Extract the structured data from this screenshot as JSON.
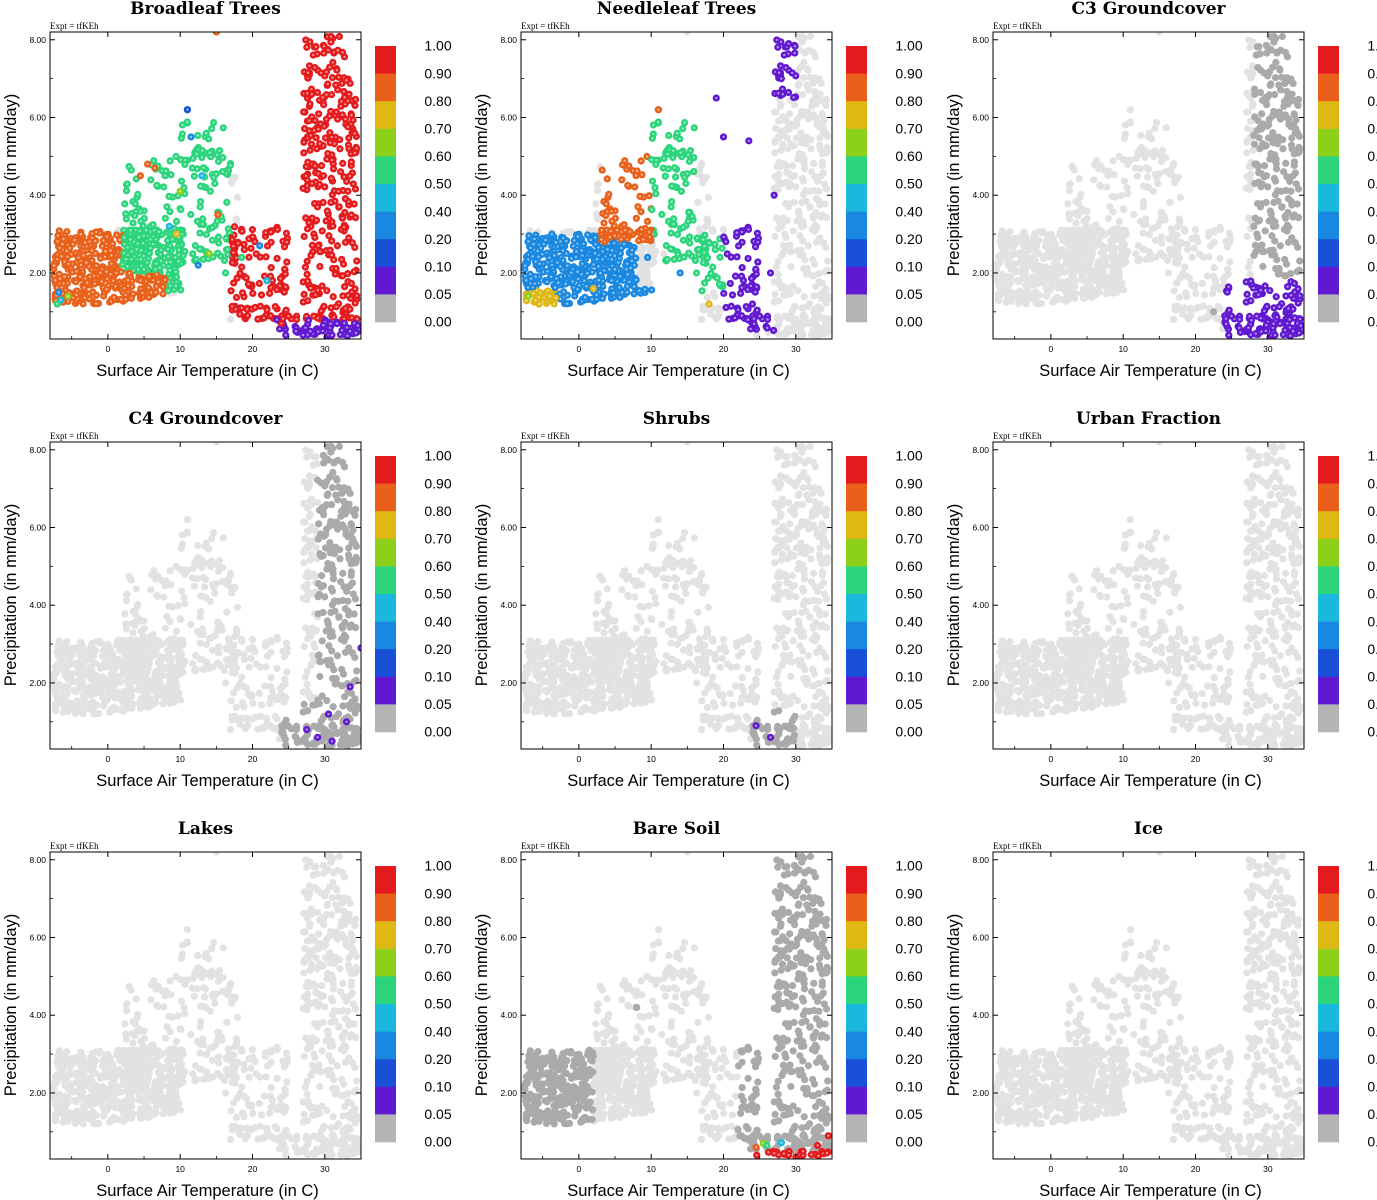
{
  "figure": {
    "experiment": "Expt = tfKEh",
    "xlabel": "Surface Air Temperature (in C)",
    "ylabel": "Precipitation (in mm/day)",
    "x_ticks": [
      0,
      10,
      20,
      30
    ],
    "y_ticks": [
      "2.00",
      "4.00",
      "6.00",
      "8.00"
    ],
    "colorbar_labels": [
      "1.00",
      "0.90",
      "0.80",
      "0.70",
      "0.60",
      "0.50",
      "0.40",
      "0.20",
      "0.10",
      "0.05",
      "0.00"
    ],
    "colorbar_colors": [
      "#e41a1c",
      "#e8601a",
      "#e0b814",
      "#8cd01c",
      "#2cd47c",
      "#1ab8dc",
      "#1a88e0",
      "#1a50d8",
      "#6018d0",
      "#b4b4b4"
    ],
    "colors": {
      "background_point": "#e2e2e2",
      "zero_point": "#aaaaaa"
    }
  },
  "chart_data": [
    {
      "type": "scatter",
      "title": "Broadleaf Trees",
      "xlabel": "Surface Air Temperature (in C)",
      "ylabel": "Precipitation (in mm/day)",
      "xlim": [
        -8,
        35
      ],
      "ylim": [
        0.3,
        8.2
      ],
      "grid": false,
      "legend": "colorbar-right",
      "color_rules": [
        {
          "x": [
            -8,
            0
          ],
          "y": [
            0,
            3.2
          ],
          "cls": 8
        },
        {
          "x": [
            0,
            8
          ],
          "y": [
            0,
            3.0
          ],
          "cls": 8
        },
        {
          "x": [
            2,
            17
          ],
          "y": [
            2.0,
            6.3
          ],
          "cls": 5
        },
        {
          "x": [
            8,
            18
          ],
          "y": [
            1.5,
            3.2
          ],
          "cls": 5
        },
        {
          "x": [
            17,
            26
          ],
          "y": [
            0.5,
            3.2
          ],
          "cls": 9
        },
        {
          "x": [
            26,
            35
          ],
          "y": [
            0.8,
            8.2
          ],
          "cls": 10
        },
        {
          "x": [
            22,
            35
          ],
          "y": [
            0,
            0.8
          ],
          "cls": 1
        }
      ],
      "highlights": [
        {
          "x": -6.5,
          "y": 1.3,
          "cls": 4
        },
        {
          "x": -6.8,
          "y": 1.5,
          "cls": 3
        },
        {
          "x": -7.0,
          "y": 1.2,
          "cls": 5
        },
        {
          "x": -5.5,
          "y": 1.4,
          "cls": 6
        },
        {
          "x": 10.0,
          "y": 4.1,
          "cls": 6
        },
        {
          "x": 11.0,
          "y": 6.2,
          "cls": 2
        },
        {
          "x": 11.5,
          "y": 5.5,
          "cls": 3
        },
        {
          "x": 9.5,
          "y": 3.0,
          "cls": 7
        },
        {
          "x": 13.0,
          "y": 4.5,
          "cls": 4
        },
        {
          "x": 5.5,
          "y": 4.8,
          "cls": 8
        },
        {
          "x": 6.5,
          "y": 4.7,
          "cls": 8
        },
        {
          "x": 4.5,
          "y": 4.5,
          "cls": 8
        },
        {
          "x": 15.0,
          "y": 8.2,
          "cls": 8
        },
        {
          "x": 15.2,
          "y": 3.5,
          "cls": 8
        },
        {
          "x": 14.0,
          "y": 2.5,
          "cls": 6
        },
        {
          "x": 12.5,
          "y": 2.2,
          "cls": 3
        },
        {
          "x": 18.5,
          "y": 2.4,
          "cls": 5
        },
        {
          "x": 21.0,
          "y": 2.7,
          "cls": 3
        },
        {
          "x": 24.0,
          "y": 0.7,
          "cls": 9
        },
        {
          "x": 26.0,
          "y": 0.5,
          "cls": 1
        },
        {
          "x": 28.0,
          "y": 0.5,
          "cls": 1
        },
        {
          "x": 27.0,
          "y": 0.4,
          "cls": 1
        },
        {
          "x": 22.0,
          "y": 1.8,
          "cls": 4
        },
        {
          "x": 8.5,
          "y": 3.2,
          "cls": 4
        }
      ]
    },
    {
      "type": "scatter",
      "title": "Needleleaf Trees",
      "xlabel": "Surface Air Temperature (in C)",
      "ylabel": "Precipitation (in mm/day)",
      "xlim": [
        -8,
        35
      ],
      "ylim": [
        0.3,
        8.2
      ],
      "grid": false,
      "legend": "colorbar-right",
      "color_rules": [
        {
          "x": [
            -8,
            -3
          ],
          "y": [
            0,
            1.8
          ],
          "cls": 7
        },
        {
          "x": [
            -8,
            8
          ],
          "y": [
            1.6,
            3.0
          ],
          "cls": 3
        },
        {
          "x": [
            3,
            10
          ],
          "y": [
            2.8,
            5.0
          ],
          "cls": 8
        },
        {
          "x": [
            10,
            16
          ],
          "y": [
            2.8,
            6.5
          ],
          "cls": 5
        },
        {
          "x": [
            -3,
            12
          ],
          "y": [
            0,
            1.6
          ],
          "cls": 3
        },
        {
          "x": [
            12,
            20
          ],
          "y": [
            1.5,
            3.0
          ],
          "cls": 5
        },
        {
          "x": [
            20,
            27
          ],
          "y": [
            0.5,
            8.2
          ],
          "cls": 1
        },
        {
          "x": [
            27,
            30
          ],
          "y": [
            6.5,
            8.2
          ],
          "cls": 1
        },
        {
          "x": [
            27,
            35
          ],
          "y": [
            0,
            6.5
          ],
          "cls": -1
        }
      ],
      "highlights": [
        {
          "x": -6.0,
          "y": 1.3,
          "cls": 7
        },
        {
          "x": -5.5,
          "y": 1.2,
          "cls": 7
        },
        {
          "x": -4.0,
          "y": 1.4,
          "cls": 7
        },
        {
          "x": -7.0,
          "y": 1.4,
          "cls": 6
        },
        {
          "x": 2.0,
          "y": 1.6,
          "cls": 7
        },
        {
          "x": 18.0,
          "y": 1.2,
          "cls": 7
        },
        {
          "x": 15.0,
          "y": 8.3,
          "cls": 2
        },
        {
          "x": 11.0,
          "y": 6.2,
          "cls": 8
        },
        {
          "x": 19.0,
          "y": 6.5,
          "cls": 1
        },
        {
          "x": 20.0,
          "y": 5.5,
          "cls": 1
        },
        {
          "x": 23.5,
          "y": 5.4,
          "cls": 1
        },
        {
          "x": 28.0,
          "y": 7.0,
          "cls": 1
        },
        {
          "x": 29.0,
          "y": 7.9,
          "cls": 1
        },
        {
          "x": 27.0,
          "y": 4.0,
          "cls": 1
        },
        {
          "x": 26.5,
          "y": 2.0,
          "cls": 1
        },
        {
          "x": 24.0,
          "y": 1.2,
          "cls": 1
        },
        {
          "x": 9.5,
          "y": 2.4,
          "cls": 3
        },
        {
          "x": 14.0,
          "y": 2.0,
          "cls": 3
        }
      ]
    },
    {
      "type": "scatter",
      "title": "C3 Groundcover",
      "xlabel": "Surface Air Temperature (in C)",
      "ylabel": "Precipitation (in mm/day)",
      "xlim": [
        -8,
        35
      ],
      "ylim": [
        0.3,
        8.2
      ],
      "grid": false,
      "legend": "colorbar-right",
      "color_rules": [
        {
          "x": [
            24,
            35
          ],
          "y": [
            0,
            1.8
          ],
          "cls": 1
        },
        {
          "x": [
            28,
            35
          ],
          "y": [
            1.8,
            8.2
          ],
          "cls": 0
        }
      ],
      "highlights": [
        {
          "x": 22.5,
          "y": 1.0,
          "cls": 0
        },
        {
          "x": 33.0,
          "y": 0.8,
          "cls": 1
        }
      ]
    },
    {
      "type": "scatter",
      "title": "C4 Groundcover",
      "xlabel": "Surface Air Temperature (in C)",
      "ylabel": "Precipitation (in mm/day)",
      "xlim": [
        -8,
        35
      ],
      "ylim": [
        0.3,
        8.2
      ],
      "grid": false,
      "legend": "colorbar-right",
      "color_rules": [
        {
          "x": [
            24,
            35
          ],
          "y": [
            0,
            1.5
          ],
          "cls": 0
        },
        {
          "x": [
            29,
            35
          ],
          "y": [
            1.5,
            8.2
          ],
          "cls": 0
        }
      ],
      "highlights": [
        {
          "x": 27.5,
          "y": 0.8,
          "cls": 1
        },
        {
          "x": 29.0,
          "y": 0.6,
          "cls": 1
        },
        {
          "x": 31.0,
          "y": 0.5,
          "cls": 1
        },
        {
          "x": 33.0,
          "y": 1.0,
          "cls": 1
        },
        {
          "x": 33.5,
          "y": 1.9,
          "cls": 1
        },
        {
          "x": 35.0,
          "y": 2.9,
          "cls": 1
        },
        {
          "x": 30.5,
          "y": 1.2,
          "cls": 1
        }
      ]
    },
    {
      "type": "scatter",
      "title": "Shrubs",
      "xlabel": "Surface Air Temperature (in C)",
      "ylabel": "Precipitation (in mm/day)",
      "xlim": [
        -8,
        35
      ],
      "ylim": [
        0.3,
        8.2
      ],
      "grid": false,
      "legend": "colorbar-right",
      "color_rules": [
        {
          "x": [
            24,
            30
          ],
          "y": [
            0.3,
            1.4
          ],
          "cls": 0
        }
      ],
      "highlights": [
        {
          "x": 24.5,
          "y": 0.9,
          "cls": 1
        },
        {
          "x": 26.5,
          "y": 0.6,
          "cls": 1
        }
      ]
    },
    {
      "type": "scatter",
      "title": "Urban Fraction",
      "xlabel": "Surface Air Temperature (in C)",
      "ylabel": "Precipitation (in mm/day)",
      "xlim": [
        -8,
        35
      ],
      "ylim": [
        0.3,
        8.2
      ],
      "grid": false,
      "legend": "colorbar-right",
      "color_rules": [],
      "highlights": []
    },
    {
      "type": "scatter",
      "title": "Lakes",
      "xlabel": "Surface Air Temperature (in C)",
      "ylabel": "Precipitation (in mm/day)",
      "xlim": [
        -8,
        35
      ],
      "ylim": [
        0.3,
        8.2
      ],
      "grid": false,
      "legend": "colorbar-right",
      "color_rules": [],
      "highlights": []
    },
    {
      "type": "scatter",
      "title": "Bare Soil",
      "xlabel": "Surface Air Temperature (in C)",
      "ylabel": "Precipitation (in mm/day)",
      "xlim": [
        -8,
        35
      ],
      "ylim": [
        0.3,
        8.2
      ],
      "grid": false,
      "legend": "colorbar-right",
      "color_rules": [
        {
          "x": [
            -8,
            2
          ],
          "y": [
            0,
            3.1
          ],
          "cls": 0
        },
        {
          "x": [
            22,
            35
          ],
          "y": [
            0.3,
            8.2
          ],
          "cls": 0
        },
        {
          "x": [
            23,
            35
          ],
          "y": [
            0,
            0.5
          ],
          "cls": 10
        }
      ],
      "highlights": [
        {
          "x": 25.5,
          "y": 0.7,
          "cls": 6
        },
        {
          "x": 26.0,
          "y": 0.65,
          "cls": 5
        },
        {
          "x": 28.0,
          "y": 0.72,
          "cls": 4
        },
        {
          "x": 24.5,
          "y": 0.6,
          "cls": 8
        },
        {
          "x": 27.0,
          "y": 0.45,
          "cls": 10
        },
        {
          "x": 29.0,
          "y": 0.4,
          "cls": 10
        },
        {
          "x": 31.0,
          "y": 0.5,
          "cls": 10
        },
        {
          "x": 33.0,
          "y": 0.65,
          "cls": 10
        },
        {
          "x": 34.5,
          "y": 0.9,
          "cls": 10
        },
        {
          "x": 30.0,
          "y": 0.35,
          "cls": 10
        },
        {
          "x": 8.0,
          "y": 4.2,
          "cls": 0
        }
      ]
    },
    {
      "type": "scatter",
      "title": "Ice",
      "xlabel": "Surface Air Temperature (in C)",
      "ylabel": "Precipitation (in mm/day)",
      "xlim": [
        -8,
        35
      ],
      "ylim": [
        0.3,
        8.2
      ],
      "grid": false,
      "legend": "colorbar-right",
      "color_rules": [],
      "highlights": []
    }
  ]
}
